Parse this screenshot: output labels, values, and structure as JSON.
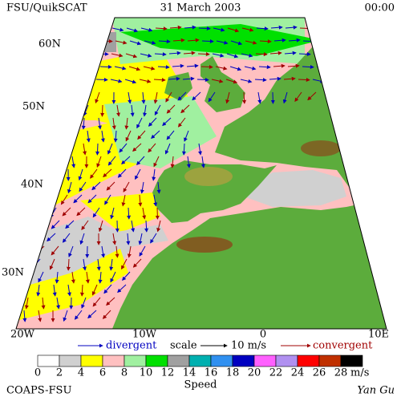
{
  "header": {
    "left": "FSU/QuikSCAT",
    "center": "31 March 2003",
    "right": "00:00"
  },
  "map": {
    "lat_labels": [
      "60N",
      "50N",
      "40N",
      "30N"
    ],
    "lon_labels": [
      "20W",
      "10W",
      "0",
      "10E"
    ]
  },
  "legend": {
    "divergent": "divergent",
    "scale": "scale",
    "scale_value": "10 m/s",
    "convergent": "convergent"
  },
  "colorbar": {
    "ticks": [
      0,
      2,
      4,
      6,
      8,
      10,
      12,
      14,
      16,
      18,
      20,
      22,
      24,
      26,
      28
    ],
    "colors": [
      "#ffffff",
      "#d0d0d0",
      "#ffff00",
      "#ffc0c0",
      "#a0f0a0",
      "#00e000",
      "#a0a0a0",
      "#00b0b0",
      "#3090f0",
      "#0000c0",
      "#ff60ff",
      "#b090f0",
      "#ff0000",
      "#c03000",
      "#000000"
    ],
    "unit": "m/s",
    "label": "Speed"
  },
  "footer": {
    "left": "COAPS-FSU",
    "right": "Yan Gu"
  }
}
